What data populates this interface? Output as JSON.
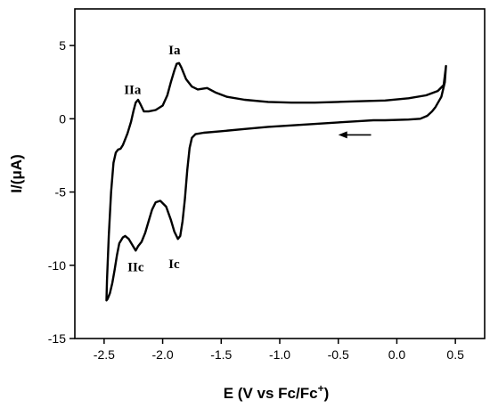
{
  "chart_data": {
    "type": "line",
    "title": "",
    "xlabel": "E (V vs Fc/Fc",
    "xlabel_superscript": "+",
    "xlabel_suffix": ")",
    "ylabel": "I/(μA)",
    "xlim": [
      -2.75,
      0.75
    ],
    "ylim": [
      -15,
      7.5
    ],
    "xticks": [
      -2.5,
      -2.0,
      -1.5,
      -1.0,
      -0.5,
      0.0,
      0.5
    ],
    "xtick_labels": [
      "-2.5",
      "-2.0",
      "-1.5",
      "-1.0",
      "-0.5",
      "0.0",
      "0.5"
    ],
    "yticks": [
      -15,
      -10,
      -5,
      0,
      5
    ],
    "ytick_labels": [
      "-15",
      "-10",
      "-5",
      "0",
      "5"
    ],
    "grid": false,
    "legend": false,
    "scan_direction_arrow": {
      "x_start": -0.22,
      "x_end": -0.5,
      "y": -1.1
    },
    "series": [
      {
        "x": [
          -0.2,
          -0.3,
          -0.5,
          -0.8,
          -1.1,
          -1.3,
          -1.5,
          -1.65,
          -1.72,
          -1.75,
          -1.77,
          -1.79,
          -1.81,
          -1.83,
          -1.85,
          -1.87,
          -1.9,
          -1.93,
          -1.97,
          -2.02,
          -2.06,
          -2.09,
          -2.12,
          -2.15,
          -2.18,
          -2.21,
          -2.23,
          -2.26,
          -2.29,
          -2.32,
          -2.34,
          -2.37,
          -2.39,
          -2.41,
          -2.43,
          -2.45,
          -2.47,
          -2.48,
          -2.475,
          -2.46,
          -2.44,
          -2.42,
          -2.4,
          -2.38,
          -2.36,
          -2.34,
          -2.3,
          -2.27,
          -2.25,
          -2.23,
          -2.21,
          -2.19,
          -2.16,
          -2.12,
          -2.06,
          -2.0,
          -1.96,
          -1.93,
          -1.9,
          -1.88,
          -1.86,
          -1.84,
          -1.8,
          -1.75,
          -1.7,
          -1.62,
          -1.55,
          -1.45,
          -1.3,
          -1.1,
          -0.9,
          -0.7,
          -0.5,
          -0.3,
          -0.1,
          0.1,
          0.25,
          0.35,
          0.4,
          0.42,
          0.41,
          0.38,
          0.33,
          0.3,
          0.26,
          0.2,
          0.1,
          -0.1,
          -0.2
        ],
        "y": [
          -0.1,
          -0.15,
          -0.25,
          -0.4,
          -0.55,
          -0.7,
          -0.85,
          -0.95,
          -1.05,
          -1.3,
          -2.0,
          -3.5,
          -5.5,
          -7.0,
          -8.0,
          -8.2,
          -7.7,
          -6.9,
          -6.0,
          -5.6,
          -5.7,
          -6.2,
          -7.0,
          -7.8,
          -8.4,
          -8.7,
          -9.0,
          -8.6,
          -8.2,
          -8.0,
          -8.1,
          -8.5,
          -9.3,
          -10.3,
          -11.2,
          -11.9,
          -12.3,
          -12.4,
          -11.0,
          -8.0,
          -5.0,
          -3.0,
          -2.3,
          -2.1,
          -2.05,
          -1.8,
          -1.0,
          -0.2,
          0.5,
          1.1,
          1.3,
          1.0,
          0.5,
          0.5,
          0.6,
          0.9,
          1.6,
          2.5,
          3.3,
          3.75,
          3.8,
          3.5,
          2.7,
          2.2,
          2.0,
          2.1,
          1.8,
          1.5,
          1.3,
          1.15,
          1.1,
          1.1,
          1.15,
          1.2,
          1.25,
          1.4,
          1.6,
          1.9,
          2.3,
          3.6,
          2.5,
          1.5,
          0.8,
          0.5,
          0.2,
          0.0,
          -0.05,
          -0.1,
          -0.1
        ]
      }
    ],
    "annotations": [
      {
        "text": "Ia",
        "x": -1.95,
        "y": 4.4
      },
      {
        "text": "IIa",
        "x": -2.33,
        "y": 1.7
      },
      {
        "text": "Ic",
        "x": -1.95,
        "y": -10.2
      },
      {
        "text": "IIc",
        "x": -2.3,
        "y": -10.4
      }
    ]
  }
}
